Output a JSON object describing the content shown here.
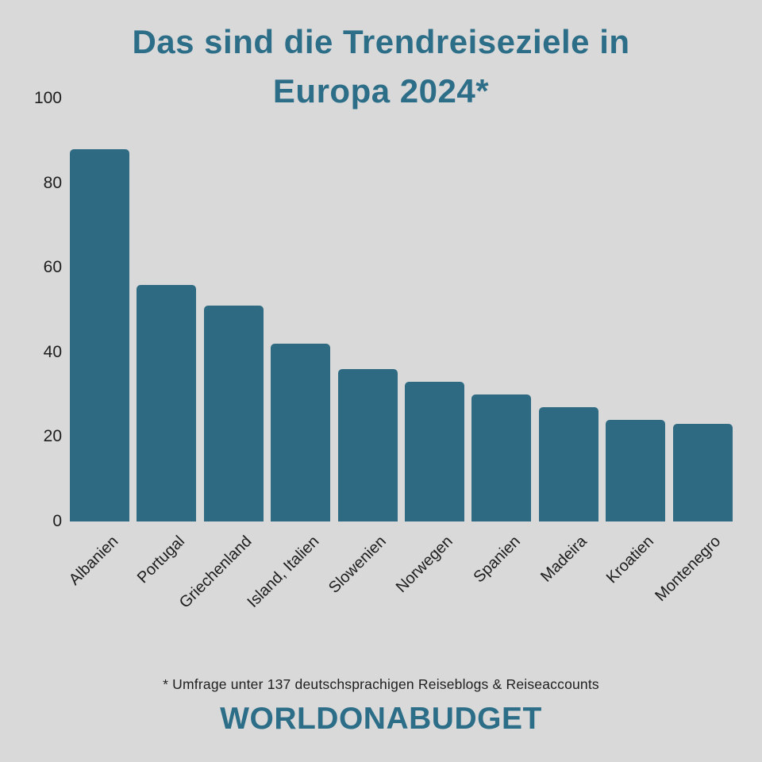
{
  "title": {
    "line1": "Das sind die Trendreiseziele in",
    "line2": "Europa 2024*"
  },
  "chart_data": {
    "type": "bar",
    "title": "Das sind die Trendreiseziele in Europa 2024*",
    "categories": [
      "Albanien",
      "Portugal",
      "Griechenland",
      "Island, Italien",
      "Slowenien",
      "Norwegen",
      "Spanien",
      "Madeira",
      "Kroatien",
      "Montenegro"
    ],
    "values": [
      88,
      56,
      51,
      42,
      36,
      33,
      30,
      27,
      24,
      23
    ],
    "xlabel": "",
    "ylabel": "",
    "ylim": [
      0,
      100
    ],
    "yticks": [
      0,
      20,
      40,
      60,
      80,
      100
    ],
    "grid": false,
    "legend": false,
    "bar_color": "#2e6b82",
    "background_color": "#d9d9d9"
  },
  "footnote": "* Umfrage unter 137 deutschsprachigen Reiseblogs & Reiseaccounts",
  "brand": "WORLDONABUDGET",
  "colors": {
    "accent": "#2c6d88",
    "bar": "#2e6b82",
    "text": "#1d1d1d",
    "background": "#d9d9d9"
  }
}
